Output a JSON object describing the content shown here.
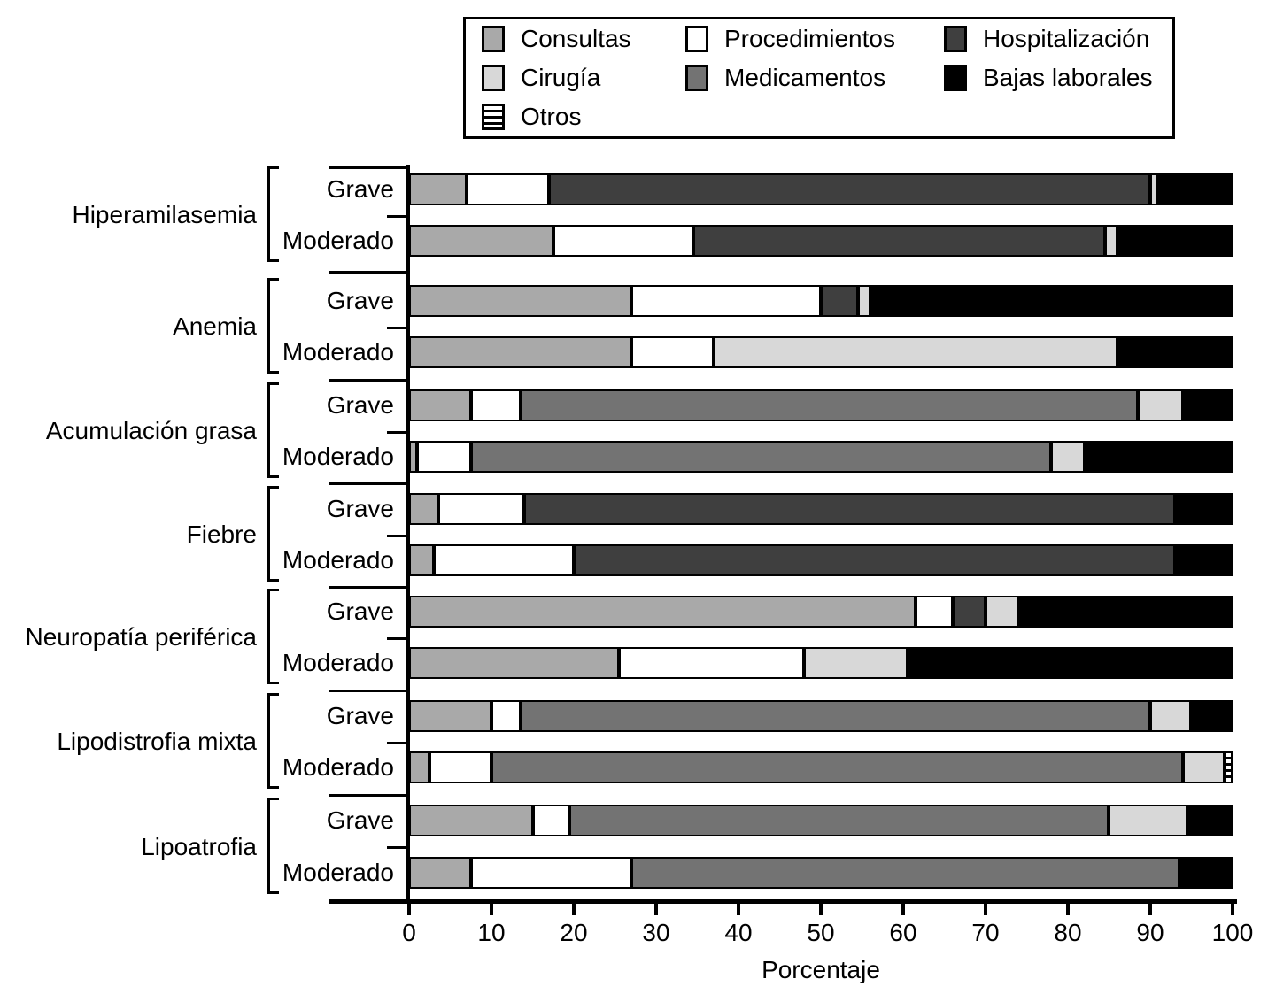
{
  "chart_data": {
    "type": "bar",
    "subtype": "stacked-horizontal",
    "title": "",
    "xlabel": "Porcentaje",
    "ylabel": "",
    "xlim": [
      0,
      100
    ],
    "grid": false,
    "xticks": [
      0,
      10,
      20,
      30,
      40,
      50,
      60,
      70,
      80,
      90,
      100
    ],
    "stack_order": [
      "consultas",
      "procedimientos",
      "hospitalizacion",
      "medicamentos",
      "cirugia",
      "otros",
      "bajas"
    ],
    "series_colors": {
      "consultas": "#a9a9a9",
      "procedimientos": "#ffffff",
      "hospitalizacion": "#3f3f3f",
      "medicamentos": "#737373",
      "cirugia": "#d8d8d8",
      "otros": "pattern-horizontal-stripes",
      "bajas": "#000000"
    },
    "groups": [
      {
        "category": "Hiperamilasemia",
        "rows": [
          {
            "label": "Grave",
            "values": {
              "consultas": 7,
              "procedimientos": 10,
              "hospitalizacion": 73,
              "medicamentos": 0,
              "cirugia": 1,
              "otros": 0,
              "bajas": 9
            }
          },
          {
            "label": "Moderado",
            "values": {
              "consultas": 17.5,
              "procedimientos": 17,
              "hospitalizacion": 50,
              "medicamentos": 0,
              "cirugia": 1.5,
              "otros": 0,
              "bajas": 14
            }
          }
        ]
      },
      {
        "category": "Anemia",
        "rows": [
          {
            "label": "Grave",
            "values": {
              "consultas": 27,
              "procedimientos": 23,
              "hospitalizacion": 4.5,
              "medicamentos": 0,
              "cirugia": 1.5,
              "otros": 0,
              "bajas": 44
            }
          },
          {
            "label": "Moderado",
            "values": {
              "consultas": 27,
              "procedimientos": 10,
              "hospitalizacion": 0,
              "medicamentos": 0,
              "cirugia": 49,
              "otros": 0,
              "bajas": 14
            }
          }
        ]
      },
      {
        "category": "Acumulación grasa",
        "rows": [
          {
            "label": "Grave",
            "values": {
              "consultas": 7.5,
              "procedimientos": 6,
              "hospitalizacion": 0,
              "medicamentos": 75,
              "cirugia": 5.5,
              "otros": 0,
              "bajas": 6
            }
          },
          {
            "label": "Moderado",
            "values": {
              "consultas": 1,
              "procedimientos": 6.5,
              "hospitalizacion": 0,
              "medicamentos": 70.5,
              "cirugia": 4,
              "otros": 0,
              "bajas": 18
            }
          }
        ]
      },
      {
        "category": "Fiebre",
        "rows": [
          {
            "label": "Grave",
            "values": {
              "consultas": 3.5,
              "procedimientos": 10.5,
              "hospitalizacion": 79,
              "medicamentos": 0,
              "cirugia": 0,
              "otros": 0,
              "bajas": 7
            }
          },
          {
            "label": "Moderado",
            "values": {
              "consultas": 3,
              "procedimientos": 17,
              "hospitalizacion": 73,
              "medicamentos": 0,
              "cirugia": 0,
              "otros": 0,
              "bajas": 7
            }
          }
        ]
      },
      {
        "category": "Neuropatía periférica",
        "rows": [
          {
            "label": "Grave",
            "values": {
              "consultas": 61.5,
              "procedimientos": 4.5,
              "hospitalizacion": 4,
              "medicamentos": 0,
              "cirugia": 4,
              "otros": 0,
              "bajas": 26
            }
          },
          {
            "label": "Moderado",
            "values": {
              "consultas": 25.5,
              "procedimientos": 22.5,
              "hospitalizacion": 0,
              "medicamentos": 0,
              "cirugia": 12.5,
              "otros": 0,
              "bajas": 39.5
            }
          }
        ]
      },
      {
        "category": "Lipodistrofia mixta",
        "rows": [
          {
            "label": "Grave",
            "values": {
              "consultas": 10,
              "procedimientos": 3.5,
              "hospitalizacion": 0,
              "medicamentos": 76.5,
              "cirugia": 5,
              "otros": 0,
              "bajas": 5
            }
          },
          {
            "label": "Moderado",
            "values": {
              "consultas": 2.5,
              "procedimientos": 7.5,
              "hospitalizacion": 0,
              "medicamentos": 84,
              "cirugia": 5,
              "otros": 1,
              "bajas": 0
            }
          }
        ]
      },
      {
        "category": "Lipoatrofia",
        "rows": [
          {
            "label": "Grave",
            "values": {
              "consultas": 15,
              "procedimientos": 4.5,
              "hospitalizacion": 0,
              "medicamentos": 65.5,
              "cirugia": 9.5,
              "otros": 0,
              "bajas": 5.5
            }
          },
          {
            "label": "Moderado",
            "values": {
              "consultas": 7.5,
              "procedimientos": 19.5,
              "hospitalizacion": 0,
              "medicamentos": 66.5,
              "cirugia": 0,
              "otros": 0,
              "bajas": 6.5
            }
          }
        ]
      }
    ]
  },
  "legend": {
    "items": [
      {
        "label": "Consultas",
        "key": "consultas"
      },
      {
        "label": "Cirugía",
        "key": "cirugia"
      },
      {
        "label": "Otros",
        "key": "otros"
      },
      {
        "label": "Procedimientos",
        "key": "procedimientos"
      },
      {
        "label": "Medicamentos",
        "key": "medicamentos"
      },
      {
        "label": "Hospitalización",
        "key": "hospitalizacion"
      },
      {
        "label": "Bajas laborales",
        "key": "bajas"
      }
    ]
  }
}
